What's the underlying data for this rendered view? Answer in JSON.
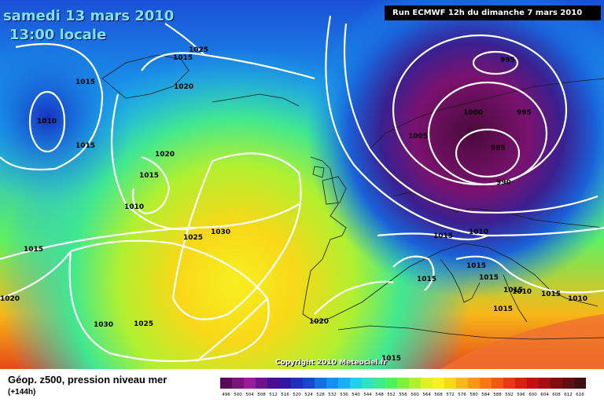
{
  "header": {
    "date_line": "samedi 13 mars 2010",
    "time_line": "13:00 locale",
    "run_info": "Run ECMWF 12h du dimanche 7 mars 2010"
  },
  "footer": {
    "title": "Géop. z500, pression niveau mer",
    "subtitle": "(+144h)",
    "copyright": "Copyright 2010 Meteociel.fr"
  },
  "legend": {
    "levels": [
      "496",
      "500",
      "504",
      "508",
      "512",
      "516",
      "520",
      "524",
      "528",
      "532",
      "536",
      "540",
      "544",
      "548",
      "552",
      "556",
      "560",
      "564",
      "568",
      "572",
      "576",
      "580",
      "584",
      "588",
      "592",
      "596",
      "600",
      "604",
      "608",
      "612",
      "616"
    ],
    "colors": [
      "#5a0a5a",
      "#7a157a",
      "#9a1c9a",
      "#6e1488",
      "#4a1090",
      "#3018a0",
      "#2030b8",
      "#1848d0",
      "#1870e0",
      "#1890f0",
      "#18b0f0",
      "#20d0e8",
      "#30e0c0",
      "#40e890",
      "#50f060",
      "#80f040",
      "#b0f030",
      "#e0f020",
      "#f8f020",
      "#f8d818",
      "#f8b818",
      "#f89818",
      "#f87818",
      "#f05818",
      "#e83818",
      "#d82010",
      "#c01010",
      "#a01010",
      "#801010",
      "#601010",
      "#401010"
    ]
  },
  "map_labels": [
    {
      "text": "1025"
    },
    {
      "text": "1015"
    },
    {
      "text": "1015"
    },
    {
      "text": "1010"
    },
    {
      "text": "1015"
    },
    {
      "text": "1020"
    },
    {
      "text": "1020"
    },
    {
      "text": "1015"
    },
    {
      "text": "1010"
    },
    {
      "text": "1025"
    },
    {
      "text": "1030"
    },
    {
      "text": "1015"
    },
    {
      "text": "1020"
    },
    {
      "text": "1030"
    },
    {
      "text": "1025"
    },
    {
      "text": "1020"
    },
    {
      "text": "995"
    },
    {
      "text": "1000"
    },
    {
      "text": "995"
    },
    {
      "text": "1005"
    },
    {
      "text": "985"
    },
    {
      "text": "990"
    },
    {
      "text": "1015"
    },
    {
      "text": "1010"
    },
    {
      "text": "1015"
    },
    {
      "text": "1015"
    },
    {
      "text": "1015"
    },
    {
      "text": "1015"
    },
    {
      "text": "1010"
    },
    {
      "text": "1015"
    },
    {
      "text": "1010"
    },
    {
      "text": "1015"
    },
    {
      "text": "1015"
    }
  ]
}
